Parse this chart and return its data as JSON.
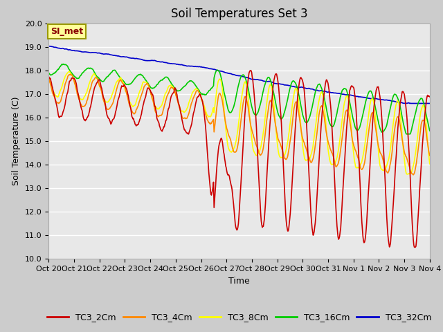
{
  "title": "Soil Temperatures Set 3",
  "xlabel": "Time",
  "ylabel": "Soil Temperature (C)",
  "ylim": [
    10.0,
    20.0
  ],
  "yticks": [
    10.0,
    11.0,
    12.0,
    13.0,
    14.0,
    15.0,
    16.0,
    17.0,
    18.0,
    19.0,
    20.0
  ],
  "xtick_labels": [
    "Oct 20",
    "Oct 21",
    "Oct 22",
    "Oct 23",
    "Oct 24",
    "Oct 25",
    "Oct 26",
    "Oct 27",
    "Oct 28",
    "Oct 29",
    "Oct 30",
    "Oct 31",
    "Nov 1",
    "Nov 2",
    "Nov 3",
    "Nov 4"
  ],
  "series_colors": [
    "#cc0000",
    "#ff8800",
    "#ffff00",
    "#00cc00",
    "#0000cc"
  ],
  "series_names": [
    "TC3_2Cm",
    "TC3_4Cm",
    "TC3_8Cm",
    "TC3_16Cm",
    "TC3_32Cm"
  ],
  "annotation_text": "SI_met",
  "background_color": "#e8e8e8",
  "grid_color": "#ffffff",
  "title_fontsize": 12,
  "axis_fontsize": 9,
  "tick_fontsize": 8,
  "legend_fontsize": 9,
  "line_width": 1.2,
  "n_days": 15,
  "pts_per_day": 48
}
